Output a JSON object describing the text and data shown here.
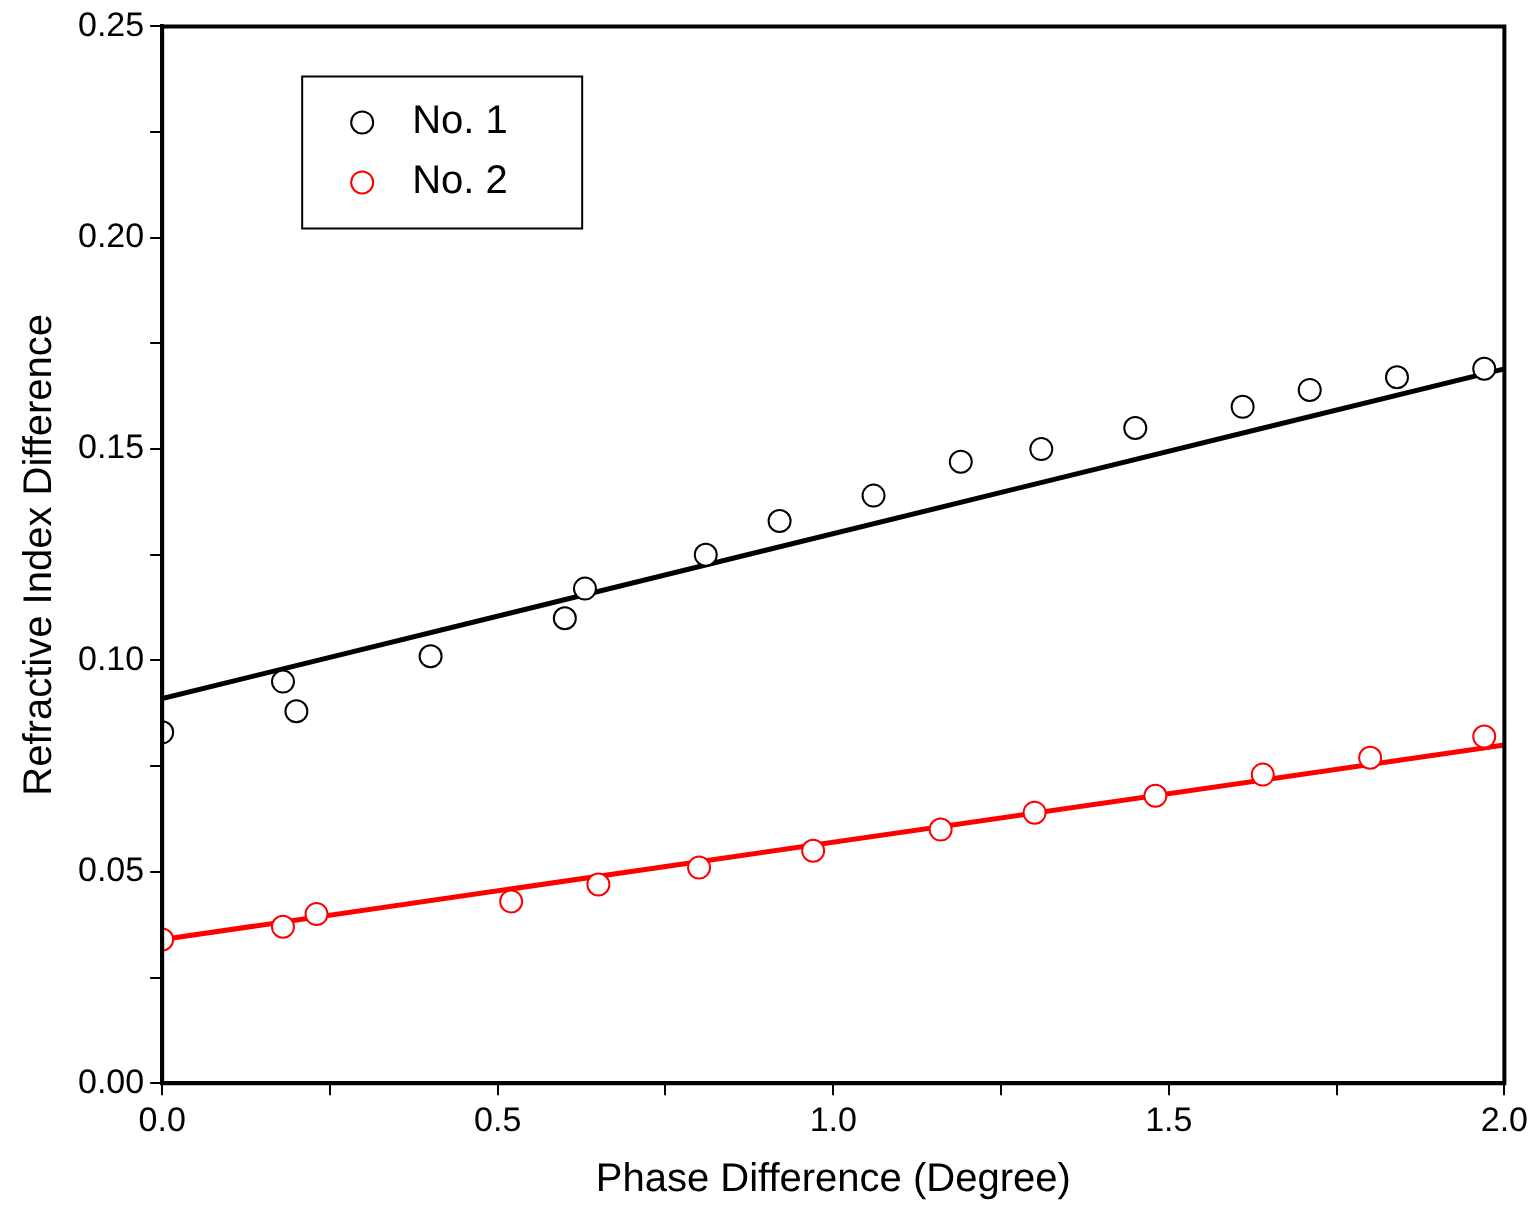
{
  "chart_data": {
    "type": "scatter",
    "xlabel": "Phase Difference (Degree)",
    "ylabel": "Refractive Index Difference",
    "xlim": [
      0,
      2.0
    ],
    "ylim": [
      0,
      0.25
    ],
    "xticks": [
      {
        "value": 0,
        "label": "0.0"
      },
      {
        "value": 0.25,
        "label": null
      },
      {
        "value": 0.5,
        "label": "0.5"
      },
      {
        "value": 0.75,
        "label": null
      },
      {
        "value": 1.0,
        "label": "1.0"
      },
      {
        "value": 1.25,
        "label": null
      },
      {
        "value": 1.5,
        "label": "1.5"
      },
      {
        "value": 1.75,
        "label": null
      },
      {
        "value": 2.0,
        "label": "2.0"
      }
    ],
    "yticks": [
      {
        "value": 0,
        "label": "0.00"
      },
      {
        "value": 0.025,
        "label": null
      },
      {
        "value": 0.05,
        "label": "0.05"
      },
      {
        "value": 0.075,
        "label": null
      },
      {
        "value": 0.1,
        "label": "0.10"
      },
      {
        "value": 0.125,
        "label": null
      },
      {
        "value": 0.15,
        "label": "0.15"
      },
      {
        "value": 0.175,
        "label": null
      },
      {
        "value": 0.2,
        "label": "0.20"
      },
      {
        "value": 0.225,
        "label": null
      },
      {
        "value": 0.25,
        "label": "0.25"
      }
    ],
    "grid": false,
    "legend": "top left",
    "marker": "circle",
    "series": [
      {
        "name": "No. 1",
        "color": "#000000",
        "x": [
          0,
          0.18,
          0.2,
          0.4,
          0.6,
          0.63,
          0.81,
          0.92,
          1.06,
          1.19,
          1.31,
          1.45,
          1.61,
          1.71,
          1.84,
          1.97
        ],
        "values": [
          0.083,
          0.095,
          0.088,
          0.101,
          0.11,
          0.117,
          0.125,
          0.133,
          0.139,
          0.147,
          0.15,
          0.155,
          0.16,
          0.164,
          0.167,
          0.169
        ]
      },
      {
        "name": "No. 2",
        "color": "#ff0000",
        "x": [
          0,
          0.18,
          0.23,
          0.52,
          0.65,
          0.8,
          0.97,
          1.16,
          1.3,
          1.48,
          1.64,
          1.8,
          1.97
        ],
        "values": [
          0.034,
          0.037,
          0.04,
          0.043,
          0.047,
          0.051,
          0.055,
          0.06,
          0.064,
          0.068,
          0.073,
          0.077,
          0.082
        ]
      },
      {
        "type": "line",
        "color": "#000000",
        "marker": "none",
        "line_style": "solid",
        "x": [
          0,
          2.0
        ],
        "values": [
          0.091,
          0.169
        ]
      },
      {
        "type": "line",
        "color": "#ff0000",
        "marker": "none",
        "line_style": "solid",
        "x": [
          0,
          2.0
        ],
        "values": [
          0.034,
          0.08
        ]
      }
    ]
  }
}
